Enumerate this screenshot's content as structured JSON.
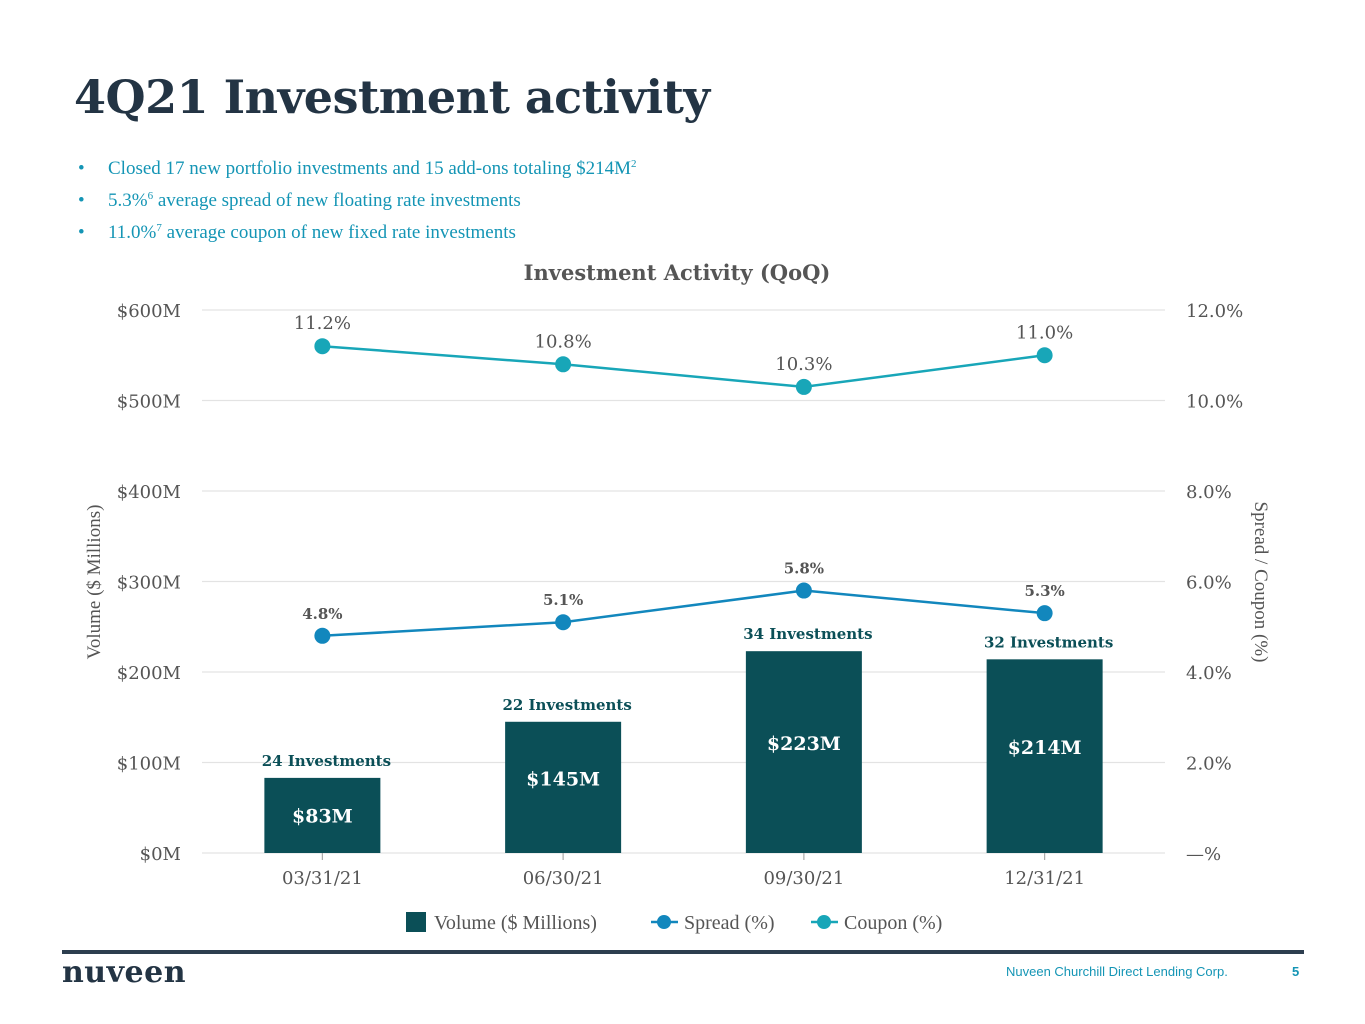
{
  "page": {
    "title": "4Q21 Investment activity",
    "bullets": [
      {
        "text": "Closed 17 new portfolio investments and 15 add-ons totaling $214M",
        "sup": "2",
        "tail": ""
      },
      {
        "text": "5.3%",
        "sup": "6",
        "tail": " average spread of new floating rate investments"
      },
      {
        "text": "11.0%",
        "sup": "7",
        "tail": " average coupon of new fixed rate investments"
      }
    ]
  },
  "footer": {
    "logo": "nuveen",
    "company": "Nuveen Churchill Direct Lending Corp.",
    "page_number": "5"
  },
  "colors": {
    "bar": "#0b4f57",
    "spread": "#1287bd",
    "coupon": "#18a6b8",
    "title": "#233444",
    "accent_text": "#1495b5",
    "axis_text": "#555555",
    "grid": "#e3e3e3"
  },
  "chart_data": {
    "type": "bar",
    "title": "Investment Activity (QoQ)",
    "categories": [
      "03/31/21",
      "06/30/21",
      "09/30/21",
      "12/31/21"
    ],
    "ylabel": "Volume ($ Millions)",
    "y2label": "Spread / Coupon (%)",
    "ylim": [
      0,
      600
    ],
    "y2lim": [
      0,
      12
    ],
    "yticks": [
      {
        "value": 0,
        "label": "$0M"
      },
      {
        "value": 100,
        "label": "$100M"
      },
      {
        "value": 200,
        "label": "$200M"
      },
      {
        "value": 300,
        "label": "$300M"
      },
      {
        "value": 400,
        "label": "$400M"
      },
      {
        "value": 500,
        "label": "$500M"
      },
      {
        "value": 600,
        "label": "$600M"
      }
    ],
    "y2ticks": [
      {
        "value": 0,
        "label": "—%"
      },
      {
        "value": 2,
        "label": "2.0%"
      },
      {
        "value": 4,
        "label": "4.0%"
      },
      {
        "value": 6,
        "label": "6.0%"
      },
      {
        "value": 8,
        "label": "8.0%"
      },
      {
        "value": 10,
        "label": "10.0%"
      },
      {
        "value": 12,
        "label": "12.0%"
      }
    ],
    "grid": true,
    "legend_position": "bottom-center",
    "series": [
      {
        "name": "Volume ($ Millions)",
        "type": "bar",
        "axis": "left",
        "values": [
          83,
          145,
          223,
          214
        ],
        "value_labels": [
          "$83M",
          "$145M",
          "$223M",
          "$214M"
        ],
        "annotations": [
          "24 Investments",
          "22 Investments",
          "34 Investments",
          "32 Investments"
        ]
      },
      {
        "name": "Spread (%)",
        "type": "line",
        "axis": "right",
        "values": [
          4.8,
          5.1,
          5.8,
          5.3
        ],
        "value_labels": [
          "4.8%",
          "5.1%",
          "5.8%",
          "5.3%"
        ]
      },
      {
        "name": "Coupon (%)",
        "type": "line",
        "axis": "right",
        "values": [
          11.2,
          10.8,
          10.3,
          11.0
        ],
        "value_labels": [
          "11.2%",
          "10.8%",
          "10.3%",
          "11.0%"
        ]
      }
    ]
  }
}
